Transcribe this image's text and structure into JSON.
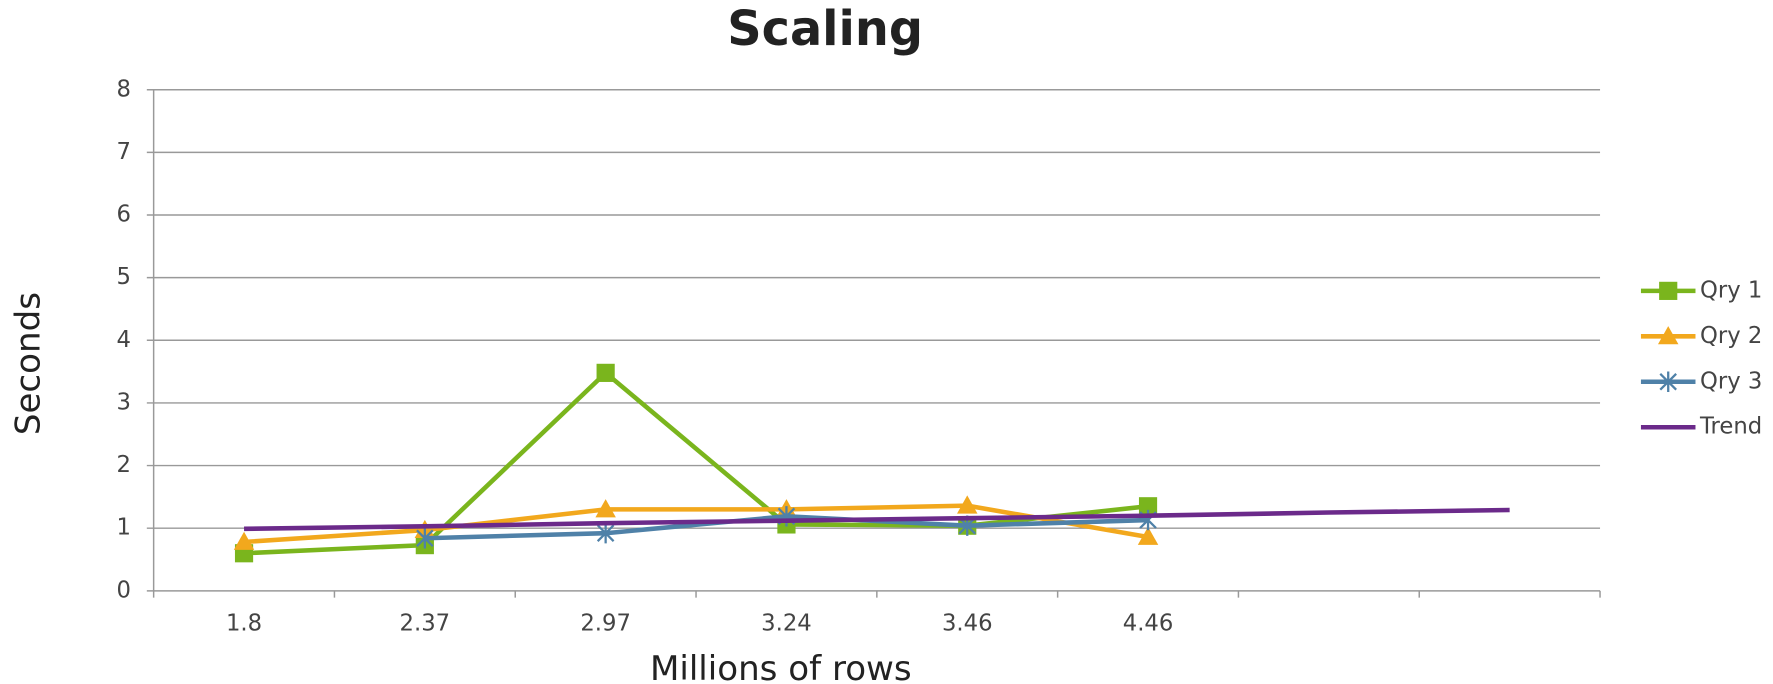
{
  "chart_data": {
    "type": "line",
    "title": "Scaling",
    "x_label": "Millions of rows",
    "y_label": "Seconds",
    "categories": [
      "1.8",
      "2.37",
      "2.97",
      "3.24",
      "3.46",
      "4.46",
      null,
      null
    ],
    "series": [
      {
        "name": "Qry 1",
        "color": "#7ab51d",
        "marker": "square",
        "values": [
          0.6,
          0.73,
          3.48,
          1.06,
          1.04,
          1.35,
          null,
          null
        ]
      },
      {
        "name": "Qry 2",
        "color": "#f2a81d",
        "marker": "triangle",
        "values": [
          0.78,
          0.97,
          1.3,
          1.3,
          1.36,
          0.86,
          null,
          null
        ]
      },
      {
        "name": "Qry 3",
        "color": "#4f81a8",
        "marker": "asterisk",
        "values": [
          null,
          0.84,
          0.92,
          1.19,
          1.04,
          1.13,
          null,
          null
        ]
      },
      {
        "name": "Trend",
        "color": "#6b2a8a",
        "marker": "none",
        "values": [
          0.99,
          1.03,
          1.08,
          1.12,
          1.16,
          1.2,
          1.25,
          1.29
        ]
      }
    ],
    "ylim": [
      0,
      8
    ],
    "yticks": [
      0,
      1,
      2,
      3,
      4,
      5,
      6,
      7,
      8
    ],
    "grid": true,
    "legend": "right"
  }
}
